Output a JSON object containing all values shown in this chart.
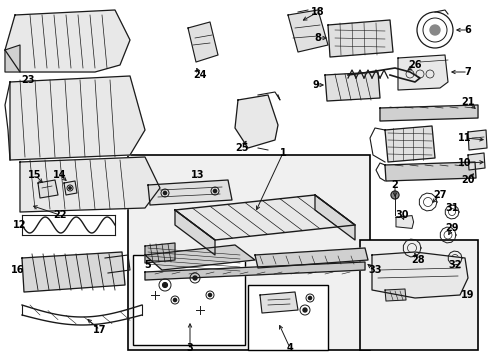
{
  "background_color": "#ffffff",
  "border_color": "#000000",
  "line_color": "#1a1a1a",
  "fig_width": 4.89,
  "fig_height": 3.6,
  "dpi": 100
}
